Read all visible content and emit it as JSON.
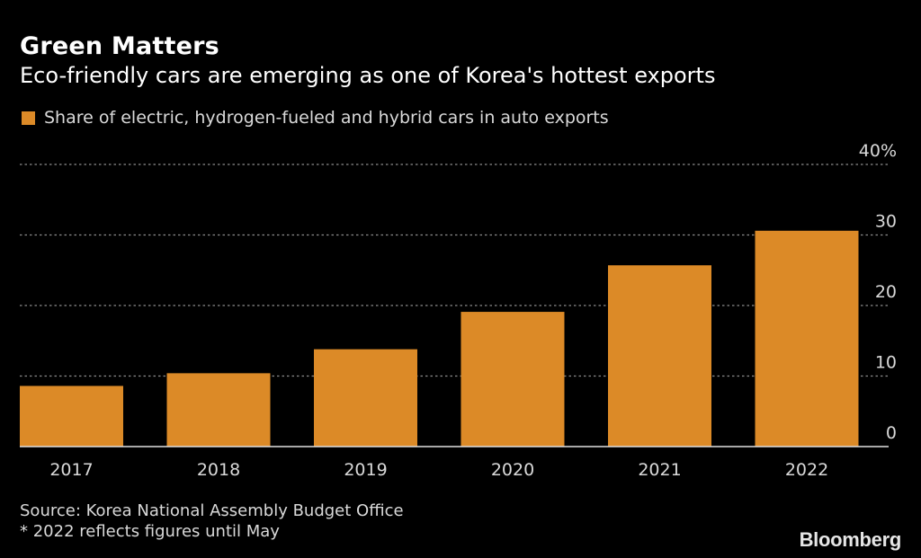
{
  "header": {
    "title": "Green Matters",
    "subtitle": "Eco-friendly cars are emerging as one of Korea's hottest exports"
  },
  "footer": {
    "source": "Source: Korea National Assembly Budget Office",
    "note": "* 2022 reflects figures until May",
    "brand": "Bloomberg"
  },
  "colors": {
    "bar": "#dc8a27",
    "background": "#000000",
    "grid": "#8c8c8c",
    "text": "#d9d9d9"
  },
  "chart_data": {
    "type": "bar",
    "title": "Green Matters",
    "subtitle": "Eco-friendly cars are emerging as one of Korea's hottest exports",
    "categories": [
      "2017",
      "2018",
      "2019",
      "2020",
      "2021",
      "2022"
    ],
    "series": [
      {
        "name": "Share of electric, hydrogen-fueled and hybrid cars in auto exports",
        "values": [
          8.6,
          10.4,
          13.8,
          19.1,
          25.7,
          30.6
        ]
      }
    ],
    "xlabel": "",
    "ylabel": "",
    "ylim": [
      0,
      40
    ],
    "yticks": [
      0,
      10,
      20,
      30,
      40
    ],
    "ytick_labels": [
      "0",
      "10",
      "20",
      "30",
      "40%"
    ],
    "y_axis_side": "right",
    "grid": true,
    "legend_position": "top-left",
    "annotations": [
      "* 2022 reflects figures until May"
    ]
  }
}
